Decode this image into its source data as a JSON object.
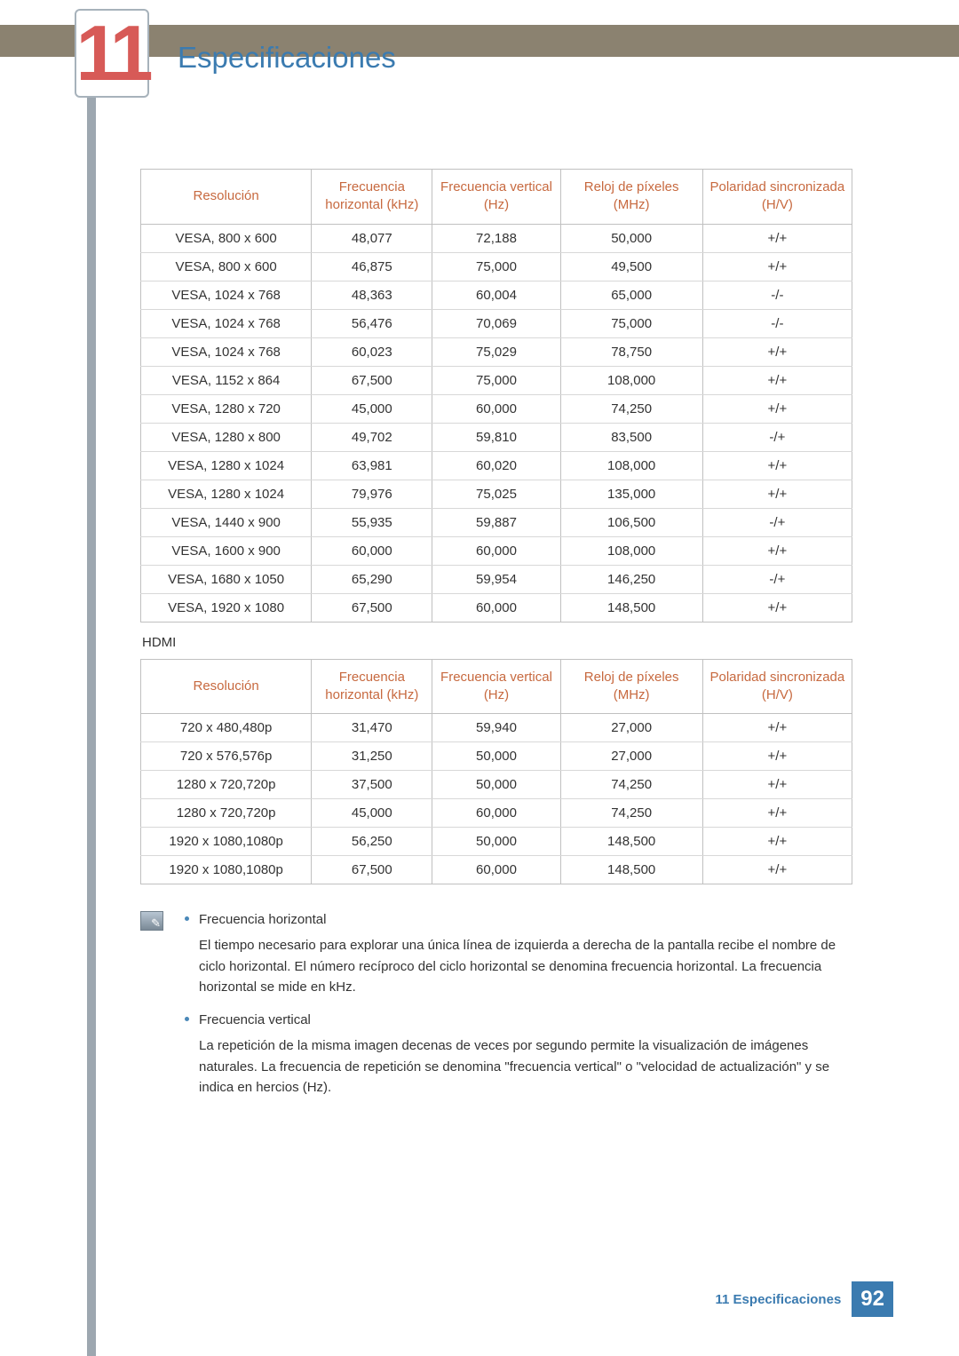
{
  "chapter": {
    "number": "11",
    "title": "Especificaciones"
  },
  "colors": {
    "accent_blue": "#3b7bb0",
    "accent_red": "#d75a57",
    "header_text": "#c7693f",
    "top_bar": "#8b8270",
    "side_bar": "#9da7b0",
    "table_border": "#c0c0c0",
    "row_divider": "#d8d8d8"
  },
  "table_headers": {
    "resolution": "Resolución",
    "hfreq": "Frecuencia horizontal (kHz)",
    "vfreq": "Frecuencia vertical (Hz)",
    "pclock": "Reloj de píxeles (MHz)",
    "polarity": "Polaridad sincronizada (H/V)"
  },
  "table1": {
    "rows": [
      [
        "VESA, 800 x 600",
        "48,077",
        "72,188",
        "50,000",
        "+/+"
      ],
      [
        "VESA, 800 x 600",
        "46,875",
        "75,000",
        "49,500",
        "+/+"
      ],
      [
        "VESA, 1024 x 768",
        "48,363",
        "60,004",
        "65,000",
        "-/-"
      ],
      [
        "VESA, 1024 x 768",
        "56,476",
        "70,069",
        "75,000",
        "-/-"
      ],
      [
        "VESA, 1024 x 768",
        "60,023",
        "75,029",
        "78,750",
        "+/+"
      ],
      [
        "VESA, 1152 x 864",
        "67,500",
        "75,000",
        "108,000",
        "+/+"
      ],
      [
        "VESA, 1280 x 720",
        "45,000",
        "60,000",
        "74,250",
        "+/+"
      ],
      [
        "VESA, 1280 x 800",
        "49,702",
        "59,810",
        "83,500",
        "-/+"
      ],
      [
        "VESA, 1280 x 1024",
        "63,981",
        "60,020",
        "108,000",
        "+/+"
      ],
      [
        "VESA, 1280 x 1024",
        "79,976",
        "75,025",
        "135,000",
        "+/+"
      ],
      [
        "VESA, 1440 x 900",
        "55,935",
        "59,887",
        "106,500",
        "-/+"
      ],
      [
        "VESA, 1600 x 900",
        "60,000",
        "60,000",
        "108,000",
        "+/+"
      ],
      [
        "VESA, 1680 x 1050",
        "65,290",
        "59,954",
        "146,250",
        "-/+"
      ],
      [
        "VESA, 1920 x 1080",
        "67,500",
        "60,000",
        "148,500",
        "+/+"
      ]
    ]
  },
  "hdmi_label": "HDMI",
  "table2": {
    "rows": [
      [
        "720 x 480,480p",
        "31,470",
        "59,940",
        "27,000",
        "+/+"
      ],
      [
        "720 x 576,576p",
        "31,250",
        "50,000",
        "27,000",
        "+/+"
      ],
      [
        "1280 x 720,720p",
        "37,500",
        "50,000",
        "74,250",
        "+/+"
      ],
      [
        "1280 x 720,720p",
        "45,000",
        "60,000",
        "74,250",
        "+/+"
      ],
      [
        "1920 x 1080,1080p",
        "56,250",
        "50,000",
        "148,500",
        "+/+"
      ],
      [
        "1920 x 1080,1080p",
        "67,500",
        "60,000",
        "148,500",
        "+/+"
      ]
    ]
  },
  "notes": [
    {
      "title": "Frecuencia horizontal",
      "body": "El tiempo necesario para explorar una única línea de izquierda a derecha de la pantalla recibe el nombre de ciclo horizontal. El número recíproco del ciclo horizontal se denomina frecuencia horizontal. La frecuencia horizontal se mide en kHz."
    },
    {
      "title": "Frecuencia vertical",
      "body": "La repetición de la misma imagen decenas de veces por segundo permite la visualización de imágenes naturales. La frecuencia de repetición se denomina \"frecuencia vertical\" o \"velocidad de actualización\" y se indica en hercios (Hz)."
    }
  ],
  "footer": {
    "label": "11 Especificaciones",
    "page": "92"
  }
}
